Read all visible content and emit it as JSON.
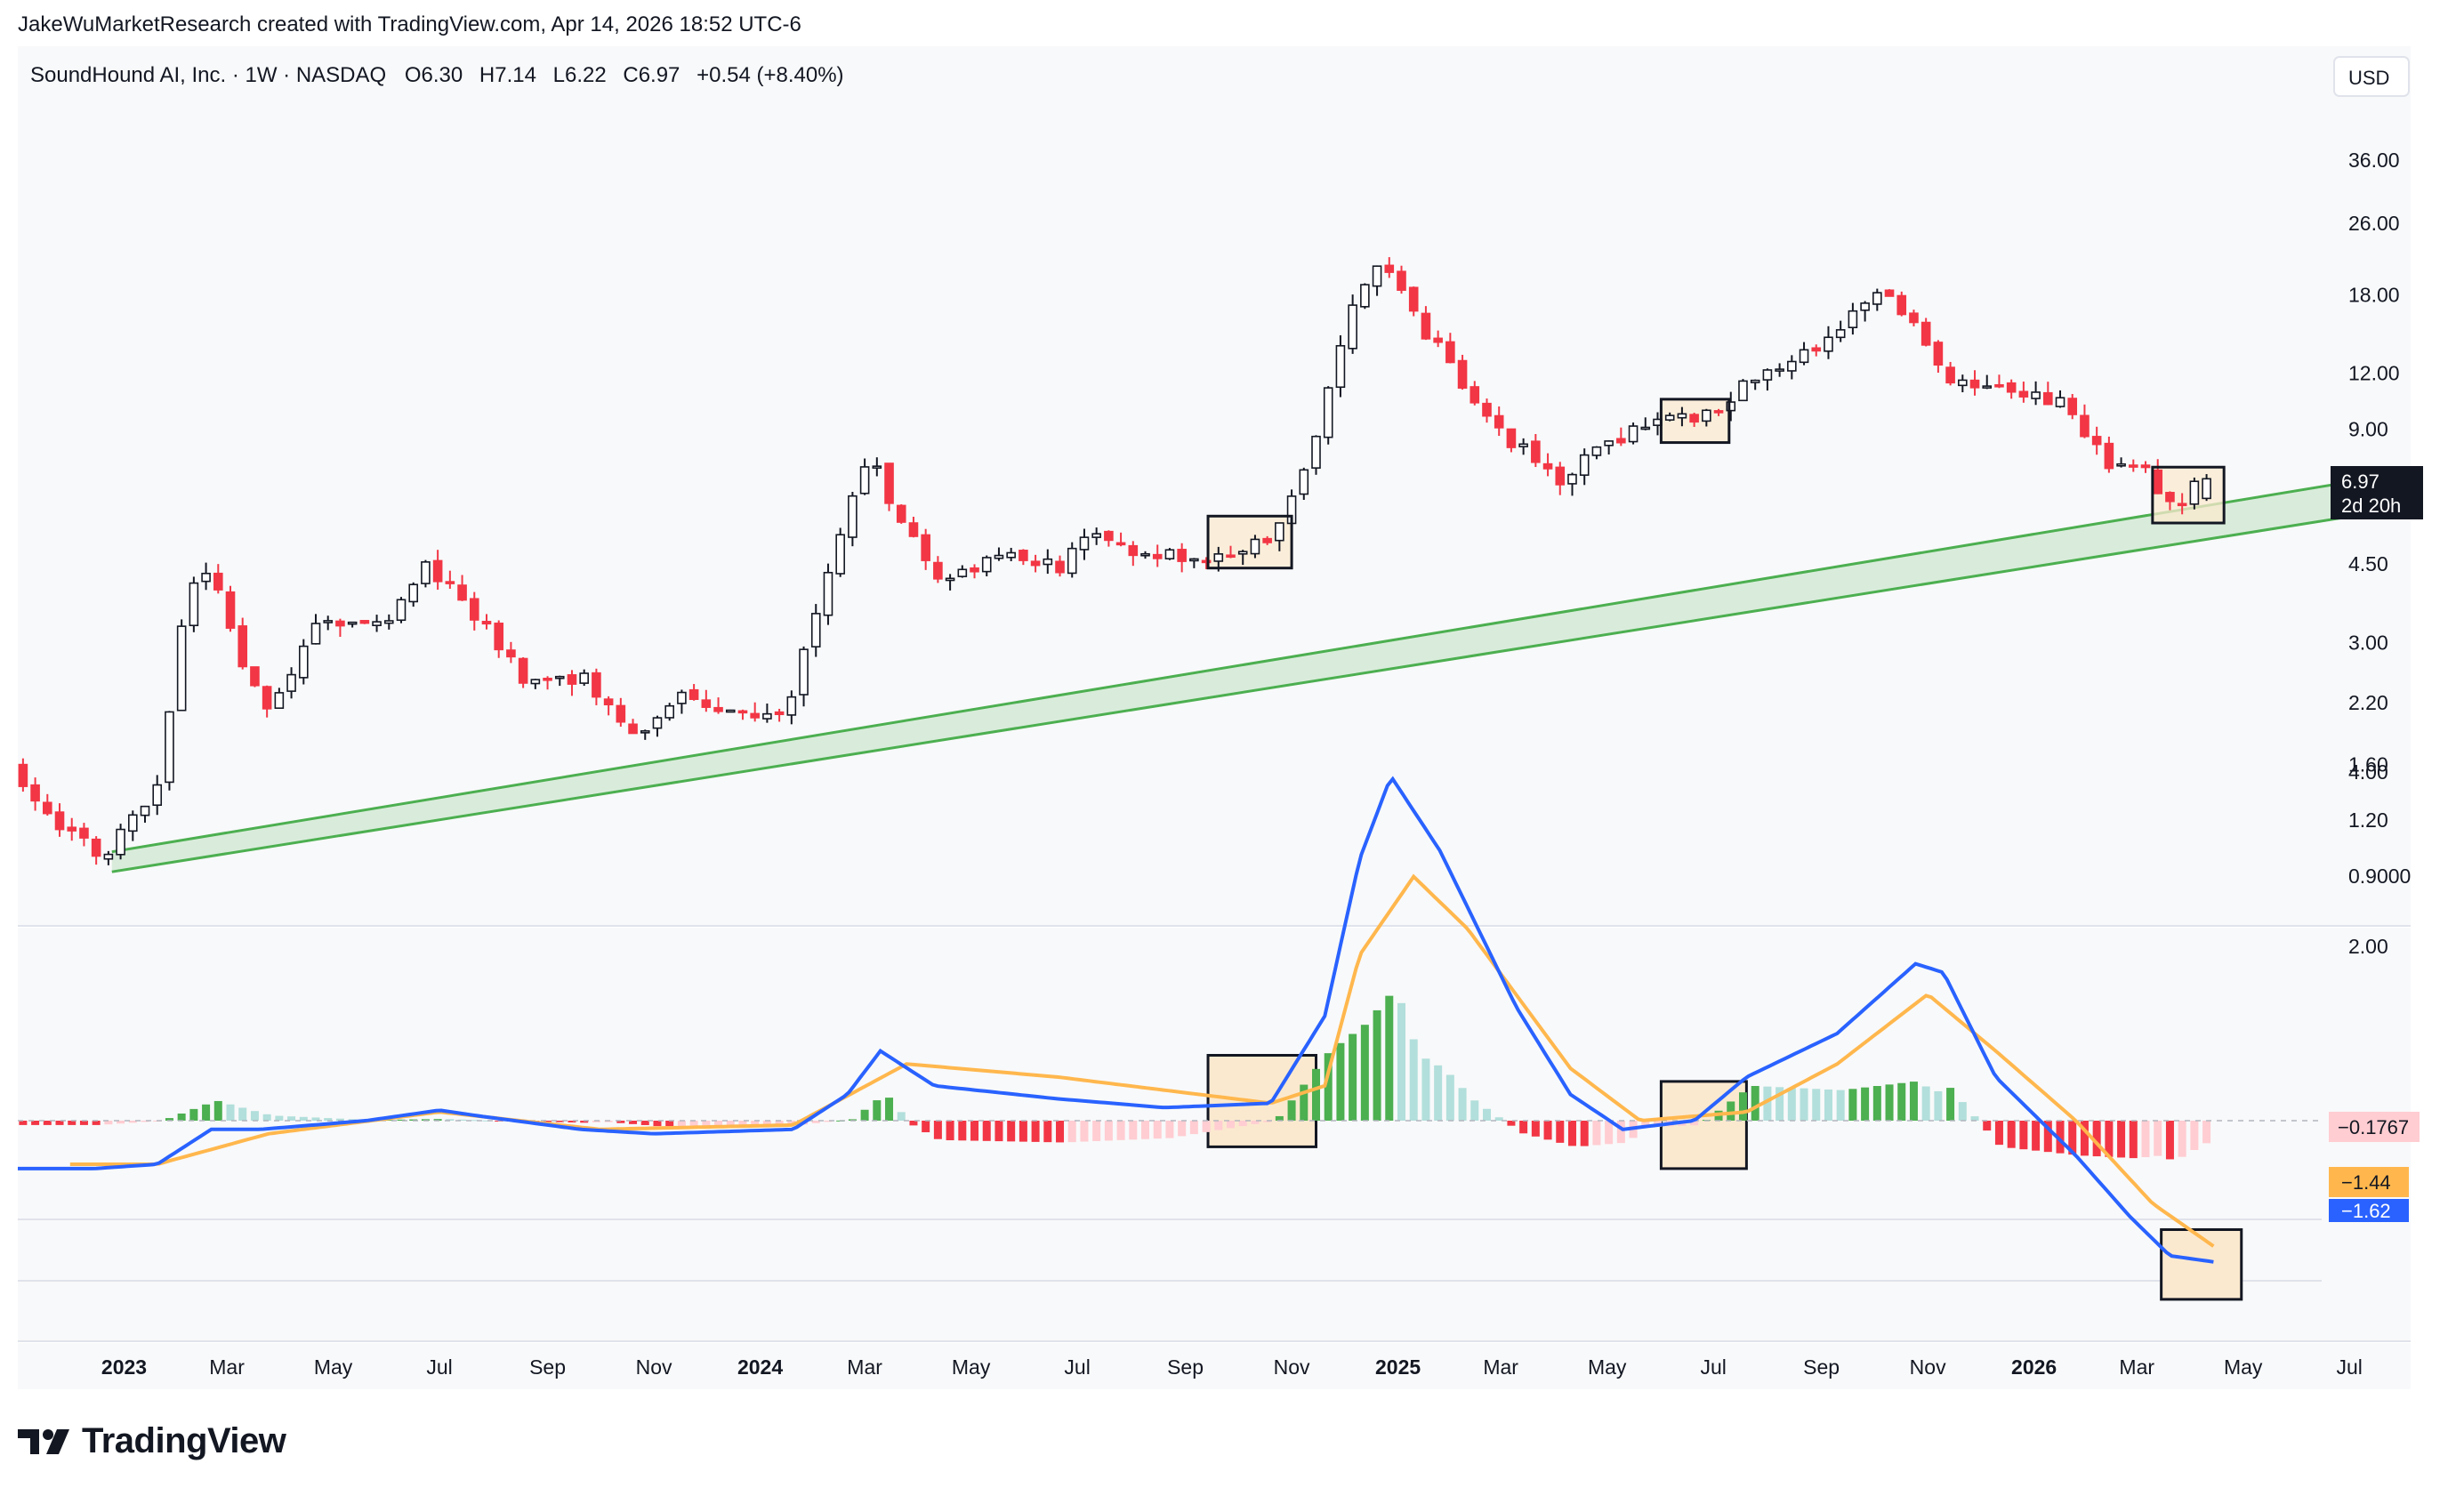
{
  "credit": "JakeWuMarketResearch created with TradingView.com, Apr 14, 2026 18:52 UTC-6",
  "legend": {
    "symbol": "SoundHound AI, Inc. · 1W · NASDAQ",
    "open": "O6.30",
    "high": "H7.14",
    "low": "L6.22",
    "close": "C6.97",
    "change": "+0.54 (+8.40%)"
  },
  "currency": "USD",
  "price_badge": {
    "price": "6.97",
    "countdown": "2d 20h"
  },
  "brand": "TradingView",
  "colors": {
    "up": "#131722",
    "down": "#f23645",
    "channel": "#4caf50",
    "macd": "#2962ff",
    "signal": "#ffb74d",
    "hist_pos_strong": "#4caf50",
    "hist_pos_weak": "#b2dfdb",
    "hist_neg_strong": "#f23645",
    "hist_neg_weak": "#ffcdd2",
    "box_fill": "#fbe9cf"
  },
  "chart_data": [
    {
      "type": "candlestick",
      "title": "SoundHound AI, Inc. · 1W · NASDAQ",
      "scale": "log",
      "y_ticks": [
        0.9,
        1.2,
        1.6,
        2.2,
        3.0,
        4.5,
        9.0,
        12.0,
        18.0,
        26.0,
        36.0
      ],
      "y_tick_labels": [
        "0.9000",
        "1.20",
        "1.60",
        "2.20",
        "3.00",
        "4.50",
        "9.00",
        "12.00",
        "18.00",
        "26.00",
        "36.00"
      ],
      "x_labels": [
        "2023",
        "Mar",
        "May",
        "Jul",
        "Sep",
        "Nov",
        "2024",
        "Mar",
        "May",
        "Jul",
        "Sep",
        "Nov",
        "2025",
        "Mar",
        "May",
        "Jul",
        "Sep",
        "Nov",
        "2026",
        "Mar",
        "May",
        "Jul"
      ],
      "x_bold": [
        "2023",
        "2024",
        "2025",
        "2026"
      ],
      "x_start": "2022-11-01",
      "x_end": "2026-07-31",
      "price_anchors": [
        [
          "2022-11-01",
          1.6
        ],
        [
          "2022-12-01",
          1.15
        ],
        [
          "2022-12-25",
          1.0
        ],
        [
          "2023-01-25",
          1.45
        ],
        [
          "2023-02-10",
          4.0
        ],
        [
          "2023-02-25",
          4.2
        ],
        [
          "2023-03-25",
          2.1
        ],
        [
          "2023-04-25",
          3.2
        ],
        [
          "2023-06-10",
          3.4
        ],
        [
          "2023-06-25",
          4.6
        ],
        [
          "2023-07-25",
          3.5
        ],
        [
          "2023-08-25",
          2.4
        ],
        [
          "2023-09-25",
          2.5
        ],
        [
          "2023-10-25",
          1.9
        ],
        [
          "2023-11-25",
          2.3
        ],
        [
          "2023-12-25",
          2.1
        ],
        [
          "2024-01-20",
          2.0
        ],
        [
          "2024-02-05",
          3.5
        ],
        [
          "2024-02-25",
          6.0
        ],
        [
          "2024-03-10",
          8.0
        ],
        [
          "2024-03-25",
          5.5
        ],
        [
          "2024-04-20",
          4.0
        ],
        [
          "2024-05-25",
          5.0
        ],
        [
          "2024-06-25",
          4.3
        ],
        [
          "2024-07-15",
          5.5
        ],
        [
          "2024-08-10",
          4.7
        ],
        [
          "2024-09-25",
          4.6
        ],
        [
          "2024-10-25",
          5.2
        ],
        [
          "2024-11-15",
          7.5
        ],
        [
          "2024-12-10",
          17.0
        ],
        [
          "2024-12-28",
          22.0
        ],
        [
          "2025-01-20",
          15.0
        ],
        [
          "2025-02-15",
          11.0
        ],
        [
          "2025-03-10",
          8.5
        ],
        [
          "2025-04-08",
          7.0
        ],
        [
          "2025-05-20",
          9.0
        ],
        [
          "2025-06-25",
          9.5
        ],
        [
          "2025-07-20",
          11.0
        ],
        [
          "2025-08-25",
          13.0
        ],
        [
          "2025-10-10",
          18.0
        ],
        [
          "2025-10-25",
          16.0
        ],
        [
          "2025-11-20",
          11.5
        ],
        [
          "2026-01-01",
          11.0
        ],
        [
          "2026-01-25",
          10.0
        ],
        [
          "2026-02-15",
          7.5
        ],
        [
          "2026-03-10",
          7.2
        ],
        [
          "2026-03-25",
          6.0
        ],
        [
          "2026-04-14",
          6.97
        ]
      ],
      "last_candle": {
        "open": 6.3,
        "high": 7.14,
        "low": 6.22,
        "close": 6.97
      },
      "channel": {
        "lower": [
          [
            "2022-12-25",
            0.92
          ],
          [
            "2026-07-15",
            5.85
          ]
        ],
        "upper": [
          [
            "2022-12-25",
            1.02
          ],
          [
            "2026-07-15",
            7.0
          ]
        ]
      },
      "highlight_boxes": [
        {
          "from": "2024-09-14",
          "to": "2024-11-01",
          "low": 4.4,
          "high": 5.75
        },
        {
          "from": "2025-06-01",
          "to": "2025-07-10",
          "low": 8.4,
          "high": 10.5
        },
        {
          "from": "2026-03-10",
          "to": "2026-04-20",
          "low": 5.55,
          "high": 7.4
        }
      ]
    },
    {
      "type": "line",
      "title": "MACD",
      "y_ticks": [
        2.0,
        4.0
      ],
      "y_tick_labels": [
        "2.00",
        "4.00"
      ],
      "value_labels": {
        "histogram": "−0.1767",
        "signal": "−1.44",
        "macd": "−1.62"
      },
      "series": [
        {
          "name": "macd",
          "values": [
            [
              "2022-11-01",
              -0.55
            ],
            [
              "2022-12-15",
              -0.55
            ],
            [
              "2023-01-20",
              -0.5
            ],
            [
              "2023-02-20",
              -0.1
            ],
            [
              "2023-03-20",
              -0.1
            ],
            [
              "2023-05-20",
              0.0
            ],
            [
              "2023-07-01",
              0.12
            ],
            [
              "2023-07-25",
              0.05
            ],
            [
              "2023-09-20",
              -0.1
            ],
            [
              "2023-11-01",
              -0.15
            ],
            [
              "2024-01-20",
              -0.1
            ],
            [
              "2024-02-20",
              0.3
            ],
            [
              "2024-03-10",
              0.8
            ],
            [
              "2024-04-10",
              0.4
            ],
            [
              "2024-06-20",
              0.25
            ],
            [
              "2024-08-20",
              0.15
            ],
            [
              "2024-10-20",
              0.2
            ],
            [
              "2024-11-20",
              1.2
            ],
            [
              "2024-12-10",
              3.0
            ],
            [
              "2024-12-28",
              3.95
            ],
            [
              "2025-01-25",
              3.1
            ],
            [
              "2025-03-10",
              1.3
            ],
            [
              "2025-04-10",
              0.3
            ],
            [
              "2025-05-10",
              -0.1
            ],
            [
              "2025-06-20",
              0.0
            ],
            [
              "2025-07-20",
              0.5
            ],
            [
              "2025-09-10",
              1.0
            ],
            [
              "2025-10-25",
              1.8
            ],
            [
              "2025-11-10",
              1.7
            ],
            [
              "2025-12-10",
              0.5
            ],
            [
              "2026-01-25",
              -0.4
            ],
            [
              "2026-02-25",
              -1.1
            ],
            [
              "2026-03-20",
              -1.55
            ],
            [
              "2026-04-14",
              -1.62
            ]
          ]
        },
        {
          "name": "signal",
          "values": [
            [
              "2022-12-01",
              -0.5
            ],
            [
              "2023-01-20",
              -0.5
            ],
            [
              "2023-03-25",
              -0.15
            ],
            [
              "2023-07-01",
              0.1
            ],
            [
              "2023-10-01",
              -0.1
            ],
            [
              "2024-01-20",
              -0.05
            ],
            [
              "2024-03-25",
              0.65
            ],
            [
              "2024-06-20",
              0.5
            ],
            [
              "2024-10-20",
              0.2
            ],
            [
              "2024-11-20",
              0.4
            ],
            [
              "2024-12-10",
              1.9
            ],
            [
              "2025-01-10",
              2.8
            ],
            [
              "2025-02-10",
              2.2
            ],
            [
              "2025-04-10",
              0.6
            ],
            [
              "2025-05-20",
              0.0
            ],
            [
              "2025-07-20",
              0.1
            ],
            [
              "2025-09-10",
              0.65
            ],
            [
              "2025-11-01",
              1.45
            ],
            [
              "2025-12-10",
              0.8
            ],
            [
              "2026-01-25",
              0.0
            ],
            [
              "2026-03-10",
              -0.95
            ],
            [
              "2026-04-14",
              -1.44
            ]
          ]
        }
      ],
      "highlight_boxes": [
        {
          "from": "2024-09-14",
          "to": "2024-11-15",
          "low": -0.3,
          "high": 0.75
        },
        {
          "from": "2025-06-01",
          "to": "2025-07-20",
          "low": -0.55,
          "high": 0.45
        },
        {
          "from": "2026-03-15",
          "to": "2026-04-30",
          "low": -2.05,
          "high": -1.25
        }
      ]
    }
  ]
}
